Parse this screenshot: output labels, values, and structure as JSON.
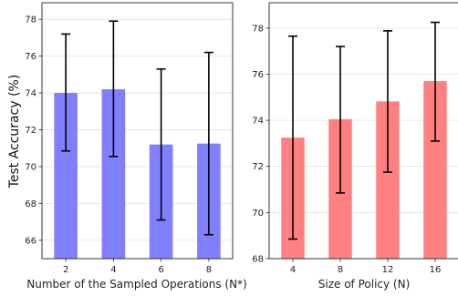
{
  "chart_data": [
    {
      "type": "bar",
      "title": "",
      "xlabel": "Number of the Sampled Operations (N*)",
      "ylabel": "Test Accuracy (%)",
      "categories": [
        "2",
        "4",
        "6",
        "8"
      ],
      "values": [
        74.0,
        74.2,
        71.2,
        71.25
      ],
      "error_low": [
        70.85,
        70.55,
        67.1,
        66.3
      ],
      "error_high": [
        77.2,
        77.9,
        75.3,
        76.2
      ],
      "ylim": [
        65,
        78.9
      ],
      "yticks": [
        66,
        68,
        70,
        72,
        74,
        76,
        78
      ],
      "bar_color": "#8080ff",
      "grid": "horizontal"
    },
    {
      "type": "bar",
      "title": "",
      "xlabel": "Size of Policy (N)",
      "ylabel": "",
      "categories": [
        "4",
        "8",
        "12",
        "16"
      ],
      "values": [
        73.25,
        74.05,
        74.82,
        75.7
      ],
      "error_low": [
        68.85,
        70.85,
        71.75,
        73.1
      ],
      "error_high": [
        77.65,
        77.2,
        77.88,
        78.25
      ],
      "ylim": [
        68,
        79.1
      ],
      "yticks": [
        68,
        70,
        72,
        74,
        76,
        78
      ],
      "bar_color": "#ff8080",
      "grid": "horizontal"
    }
  ]
}
